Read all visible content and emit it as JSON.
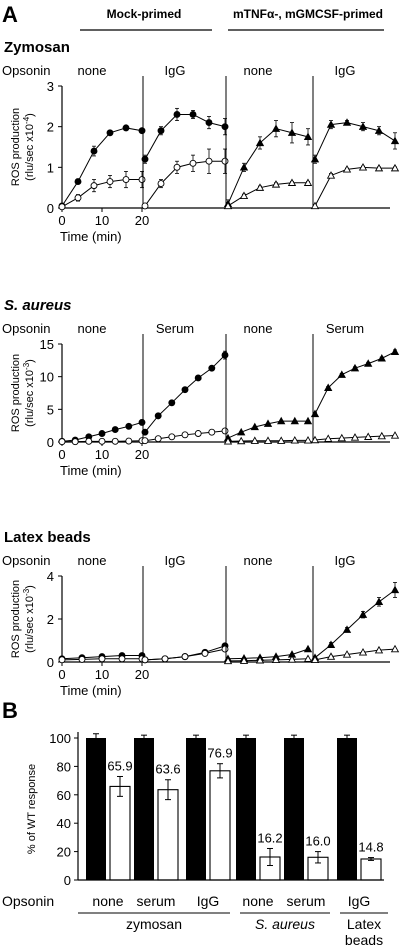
{
  "panel_a": {
    "letter": "A",
    "header_mock": "Mock-primed",
    "header_primed": "mTNFα-, mGMCSF-primed",
    "time_label": "Time (min)",
    "opsonin_word": "Opsonin",
    "ylabel_main": "ROS production",
    "x_ticks": [
      "0",
      "10",
      "20"
    ]
  },
  "panel_b": {
    "letter": "B",
    "ylabel": "% of WT response",
    "opsonin_word": "Opsonin"
  },
  "chart_data": [
    {
      "type": "line",
      "title": "Zymosan",
      "ylabel": "(rlu/sec x10",
      "yexp": "-4",
      "ylim": [
        0,
        3
      ],
      "yticks": [
        "0",
        "1",
        "2",
        "3"
      ],
      "x": [
        0,
        5,
        10,
        15,
        20
      ],
      "conditions": [
        {
          "opsonin": "none",
          "marker": "circle",
          "series": [
            {
              "filled": true,
              "values": [
                0.05,
                0.65,
                1.4,
                1.85,
                1.97,
                1.9
              ],
              "x": [
                0,
                4,
                8,
                12,
                16,
                20
              ],
              "err": [
                0.03,
                0.06,
                0.12,
                0.05,
                0.04,
                0.05
              ]
            },
            {
              "filled": false,
              "values": [
                0.03,
                0.25,
                0.55,
                0.65,
                0.7,
                0.7
              ],
              "x": [
                0,
                4,
                8,
                12,
                16,
                20
              ],
              "err": [
                0.03,
                0.08,
                0.15,
                0.15,
                0.2,
                0.2
              ]
            }
          ]
        },
        {
          "opsonin": "IgG",
          "marker": "circle",
          "series": [
            {
              "filled": true,
              "values": [
                1.2,
                1.9,
                2.3,
                2.3,
                2.1,
                2.0
              ],
              "x": [
                0,
                4,
                8,
                12,
                16,
                20
              ],
              "err": [
                0.1,
                0.1,
                0.15,
                0.1,
                0.15,
                0.2
              ]
            },
            {
              "filled": false,
              "values": [
                0.05,
                0.6,
                1.0,
                1.1,
                1.15,
                1.15
              ],
              "x": [
                0,
                4,
                8,
                12,
                16,
                20
              ],
              "err": [
                0.03,
                0.1,
                0.15,
                0.2,
                0.3,
                0.3
              ]
            }
          ]
        },
        {
          "opsonin": "none",
          "marker": "triangle",
          "series": [
            {
              "filled": true,
              "values": [
                0.1,
                1.0,
                1.6,
                1.95,
                1.85,
                1.75
              ],
              "x": [
                0,
                4,
                8,
                12,
                16,
                20
              ],
              "err": [
                0.1,
                0.1,
                0.15,
                0.2,
                0.25,
                0.2
              ]
            },
            {
              "filled": false,
              "values": [
                0.05,
                0.3,
                0.5,
                0.58,
                0.62,
                0.62
              ],
              "x": [
                0,
                4,
                8,
                12,
                16,
                20
              ],
              "err": [
                0.03,
                0.04,
                0.04,
                0.04,
                0.03,
                0.03
              ]
            }
          ]
        },
        {
          "opsonin": "IgG",
          "marker": "triangle",
          "series": [
            {
              "filled": true,
              "values": [
                1.2,
                2.05,
                2.1,
                2.0,
                1.9,
                1.65
              ],
              "x": [
                0,
                4,
                8,
                12,
                16,
                20
              ],
              "err": [
                0.1,
                0.1,
                0.05,
                0.1,
                0.1,
                0.2
              ]
            },
            {
              "filled": false,
              "values": [
                0.05,
                0.8,
                0.95,
                1.0,
                0.98,
                0.98
              ],
              "x": [
                0,
                4,
                8,
                12,
                16,
                20
              ],
              "err": [
                0.03,
                0.05,
                0.03,
                0.03,
                0.03,
                0.03
              ]
            }
          ]
        }
      ]
    },
    {
      "type": "line",
      "title": "S. aureus",
      "ylabel": "(rlu/sec x10",
      "yexp": "-3",
      "ylim": [
        0,
        15
      ],
      "yticks": [
        "0",
        "5",
        "10",
        "15"
      ],
      "conditions": [
        {
          "opsonin": "none",
          "marker": "circle",
          "series": [
            {
              "filled": true,
              "values": [
                0.1,
                0.3,
                0.8,
                1.3,
                1.9,
                2.4,
                3.0
              ],
              "x": [
                0,
                3.3,
                6.7,
                10,
                13.3,
                16.7,
                20
              ],
              "err": [
                0.05,
                0.1,
                0.1,
                0.1,
                0.2,
                0.2,
                0.4
              ]
            },
            {
              "filled": false,
              "values": [
                0.05,
                0.05,
                0.1,
                0.1,
                0.1,
                0.15,
                0.2
              ],
              "x": [
                0,
                3.3,
                6.7,
                10,
                13.3,
                16.7,
                20
              ],
              "err": [
                0.03,
                0.03,
                0.03,
                0.03,
                0.03,
                0.03,
                0.03
              ]
            }
          ]
        },
        {
          "opsonin": "Serum",
          "marker": "circle",
          "series": [
            {
              "filled": true,
              "values": [
                1.5,
                4.0,
                6.0,
                8.0,
                9.8,
                11.3,
                13.3
              ],
              "x": [
                0,
                3.3,
                6.7,
                10,
                13.3,
                16.7,
                20
              ],
              "err": [
                0.2,
                0.2,
                0.2,
                0.2,
                0.2,
                0.3,
                0.6
              ]
            },
            {
              "filled": false,
              "values": [
                0.2,
                0.5,
                0.8,
                1.1,
                1.3,
                1.5,
                1.7
              ],
              "x": [
                0,
                3.3,
                6.7,
                10,
                13.3,
                16.7,
                20
              ],
              "err": [
                0.05,
                0.05,
                0.05,
                0.05,
                0.05,
                0.05,
                0.05
              ]
            }
          ]
        },
        {
          "opsonin": "none",
          "marker": "triangle",
          "series": [
            {
              "filled": true,
              "values": [
                0.6,
                1.5,
                2.3,
                2.8,
                3.2,
                3.2,
                3.2
              ],
              "x": [
                0,
                3.3,
                6.7,
                10,
                13.3,
                16.7,
                20
              ],
              "err": [
                0.05,
                0.05,
                0.05,
                0.05,
                0.05,
                0.05,
                0.05
              ]
            },
            {
              "filled": false,
              "values": [
                0.1,
                0.15,
                0.2,
                0.2,
                0.2,
                0.25,
                0.25
              ],
              "x": [
                0,
                3.3,
                6.7,
                10,
                13.3,
                16.7,
                20
              ],
              "err": [
                0.03,
                0.03,
                0.03,
                0.03,
                0.03,
                0.03,
                0.03
              ]
            }
          ]
        },
        {
          "opsonin": "Serum",
          "marker": "triangle",
          "series": [
            {
              "filled": true,
              "values": [
                4.3,
                8.3,
                10.3,
                11.3,
                12.0,
                12.8,
                13.8
              ],
              "x": [
                0,
                3.3,
                6.7,
                10,
                13.3,
                16.7,
                20
              ],
              "err": [
                0.2,
                0.2,
                0.2,
                0.2,
                0.2,
                0.2,
                0.3
              ]
            },
            {
              "filled": false,
              "values": [
                0.3,
                0.5,
                0.6,
                0.7,
                0.8,
                0.9,
                1.0
              ],
              "x": [
                0,
                3.3,
                6.7,
                10,
                13.3,
                16.7,
                20
              ],
              "err": [
                0.05,
                0.05,
                0.05,
                0.05,
                0.05,
                0.05,
                0.05
              ]
            }
          ]
        }
      ]
    },
    {
      "type": "line",
      "title": "Latex beads",
      "ylabel": "(rlu/sec x10",
      "yexp": "-3",
      "ylim": [
        0,
        4
      ],
      "yticks": [
        "0",
        "2",
        "4"
      ],
      "conditions": [
        {
          "opsonin": "none",
          "marker": "circle",
          "series": [
            {
              "filled": true,
              "values": [
                0.15,
                0.2,
                0.25,
                0.3,
                0.3
              ],
              "x": [
                0,
                5,
                10,
                15,
                20
              ],
              "err": [
                0.05,
                0.05,
                0.05,
                0.05,
                0.05
              ]
            },
            {
              "filled": false,
              "values": [
                0.1,
                0.12,
                0.15,
                0.15,
                0.15
              ],
              "x": [
                0,
                5,
                10,
                15,
                20
              ],
              "err": [
                0.03,
                0.03,
                0.03,
                0.03,
                0.03
              ]
            }
          ]
        },
        {
          "opsonin": "IgG",
          "marker": "circle",
          "series": [
            {
              "filled": true,
              "values": [
                0.1,
                0.15,
                0.25,
                0.45,
                0.75
              ],
              "x": [
                0,
                5,
                10,
                15,
                20
              ],
              "err": [
                0.03,
                0.03,
                0.05,
                0.05,
                0.05
              ]
            },
            {
              "filled": false,
              "values": [
                0.1,
                0.15,
                0.25,
                0.4,
                0.6
              ],
              "x": [
                0,
                5,
                10,
                15,
                20
              ],
              "err": [
                0.03,
                0.03,
                0.03,
                0.03,
                0.03
              ]
            }
          ]
        },
        {
          "opsonin": "none",
          "marker": "triangle",
          "series": [
            {
              "filled": true,
              "values": [
                0.15,
                0.17,
                0.2,
                0.25,
                0.35,
                0.6
              ],
              "x": [
                0,
                4,
                8,
                12,
                16,
                20
              ],
              "err": [
                0.03,
                0.03,
                0.03,
                0.03,
                0.03,
                0.03
              ]
            },
            {
              "filled": false,
              "values": [
                0.05,
                0.06,
                0.08,
                0.1,
                0.12,
                0.15
              ],
              "x": [
                0,
                4,
                8,
                12,
                16,
                20
              ],
              "err": [
                0.02,
                0.02,
                0.02,
                0.02,
                0.02,
                0.02
              ]
            }
          ]
        },
        {
          "opsonin": "IgG",
          "marker": "triangle",
          "series": [
            {
              "filled": true,
              "values": [
                0.2,
                0.8,
                1.5,
                2.2,
                2.8,
                3.35
              ],
              "x": [
                0,
                4,
                8,
                12,
                16,
                20
              ],
              "err": [
                0.05,
                0.1,
                0.1,
                0.15,
                0.2,
                0.35
              ]
            },
            {
              "filled": false,
              "values": [
                0.1,
                0.25,
                0.35,
                0.45,
                0.55,
                0.6
              ],
              "x": [
                0,
                4,
                8,
                12,
                16,
                20
              ],
              "err": [
                0.03,
                0.03,
                0.03,
                0.03,
                0.03,
                0.03
              ]
            }
          ]
        }
      ]
    },
    {
      "type": "bar",
      "ylabel": "% of WT response",
      "ylim": [
        0,
        100
      ],
      "yticks": [
        "0",
        "20",
        "40",
        "60",
        "80",
        "100"
      ],
      "pairs": [
        {
          "opsonin": "none",
          "wt": 100,
          "wt_err": 3,
          "value": 65.9,
          "err": 7,
          "label": "65.9"
        },
        {
          "opsonin": "serum",
          "wt": 100,
          "wt_err": 2,
          "value": 63.6,
          "err": 7,
          "label": "63.6"
        },
        {
          "opsonin": "IgG",
          "wt": 100,
          "wt_err": 2,
          "value": 76.9,
          "err": 5,
          "label": "76.9"
        },
        {
          "opsonin": "none",
          "wt": 100,
          "wt_err": 2,
          "value": 16.2,
          "err": 6,
          "label": "16.2"
        },
        {
          "opsonin": "serum",
          "wt": 100,
          "wt_err": 2,
          "value": 16.0,
          "err": 4,
          "label": "16.0"
        },
        {
          "opsonin": "IgG",
          "wt": 100,
          "wt_err": 2,
          "value": 14.8,
          "err": 1,
          "label": "14.8"
        }
      ],
      "groups": [
        {
          "name": "zymosan",
          "pairs": [
            0,
            1,
            2
          ]
        },
        {
          "name": "S. aureus",
          "pairs": [
            3,
            4
          ]
        },
        {
          "name": "Latex beads",
          "pairs": [
            5
          ]
        }
      ]
    }
  ]
}
